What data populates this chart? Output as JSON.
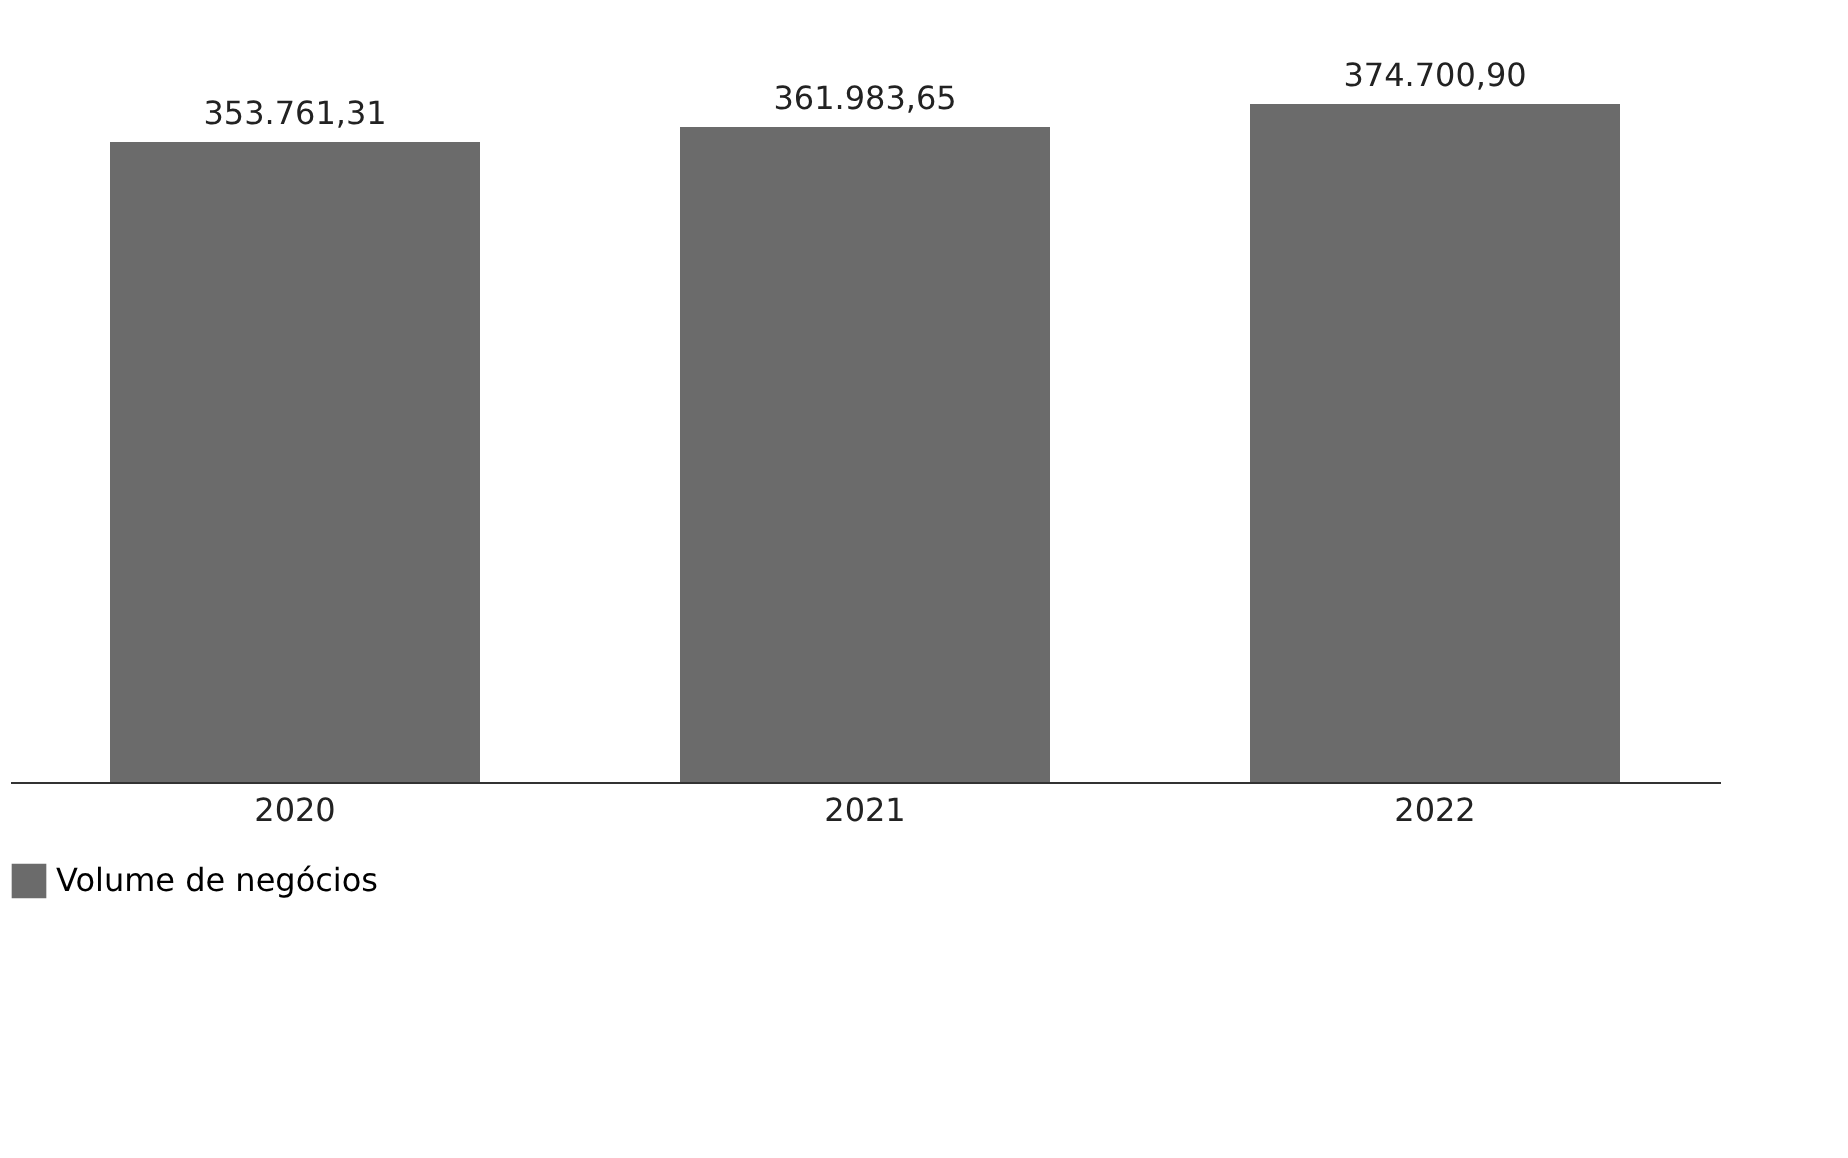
{
  "chart_data": {
    "type": "bar",
    "categories": [
      "2020",
      "2021",
      "2022"
    ],
    "series": [
      {
        "name": "Volume de negócios",
        "color": "#6b6b6b",
        "values": [
          353761.31,
          361983.65,
          374700.9
        ],
        "value_labels": [
          "353.761,31",
          "361.983,65",
          "374.700,90"
        ]
      }
    ],
    "legend": "bottom"
  }
}
